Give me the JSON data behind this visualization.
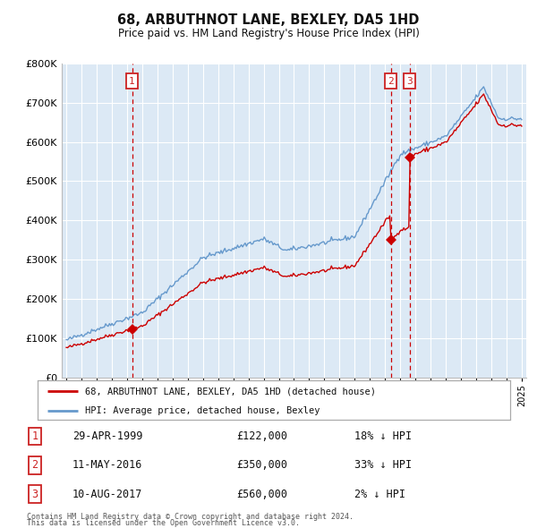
{
  "title": "68, ARBUTHNOT LANE, BEXLEY, DA5 1HD",
  "subtitle": "Price paid vs. HM Land Registry's House Price Index (HPI)",
  "footer1": "Contains HM Land Registry data © Crown copyright and database right 2024.",
  "footer2": "This data is licensed under the Open Government Licence v3.0.",
  "legend_line1": "68, ARBUTHNOT LANE, BEXLEY, DA5 1HD (detached house)",
  "legend_line2": "HPI: Average price, detached house, Bexley",
  "transactions": [
    {
      "num": 1,
      "date": "29-APR-1999",
      "price": 122000,
      "pct": "18%",
      "dir": "↓ HPI"
    },
    {
      "num": 2,
      "date": "11-MAY-2016",
      "price": 350000,
      "pct": "33%",
      "dir": "↓ HPI"
    },
    {
      "num": 3,
      "date": "10-AUG-2017",
      "price": 560000,
      "pct": "2%",
      "dir": "↓ HPI"
    }
  ],
  "transaction_years": [
    1999.33,
    2016.37,
    2017.61
  ],
  "transaction_prices": [
    122000,
    350000,
    560000
  ],
  "ylim": [
    0,
    800000
  ],
  "yticks": [
    0,
    100000,
    200000,
    300000,
    400000,
    500000,
    600000,
    700000,
    800000
  ],
  "bg_color": "#dce9f5",
  "red_line_color": "#cc0000",
  "blue_line_color": "#6699cc",
  "grid_color": "#ffffff",
  "dashed_color": "#cc0000",
  "marker_color": "#cc0000",
  "box_color": "#cc2222",
  "xlim_start": 1994.7,
  "xlim_end": 2025.3
}
